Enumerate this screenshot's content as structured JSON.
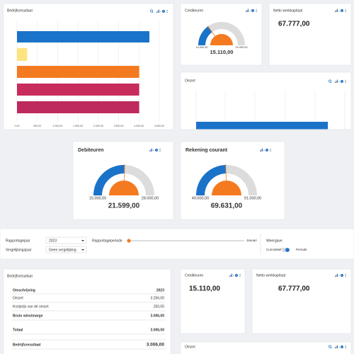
{
  "bar_chart": {
    "title": "Bedrijfsresultaat",
    "type": "bar",
    "orientation": "horizontal",
    "values": [
      3256,
      250,
      3006,
      3006,
      3006
    ],
    "colors": [
      "#1a73c9",
      "#fde47f",
      "#f47a20",
      "#c72c5c",
      "#be2a5e"
    ],
    "xlim": [
      0,
      3500
    ],
    "xticks": [
      {
        "value": 0,
        "label": "0,00"
      },
      {
        "value": 500,
        "label": "500,00"
      },
      {
        "value": 1000,
        "label": "1.000,00"
      },
      {
        "value": 1500,
        "label": "1.500,00"
      },
      {
        "value": 2000,
        "label": "2.000,00"
      },
      {
        "value": 2500,
        "label": "2.500,00"
      },
      {
        "value": 3000,
        "label": "3.000,00"
      },
      {
        "value": 3500,
        "label": "3.500,00"
      }
    ],
    "grid": true
  },
  "crediteuren_gauge": {
    "title": "Crediteuren",
    "type": "gauge",
    "min": {
      "value": 13000,
      "label": "13.000,00"
    },
    "max": {
      "value": 20000,
      "label": "20.000,00"
    },
    "value": 15110,
    "value_label": "15.110,00"
  },
  "netto_top": {
    "title": "Netto werkkapitaal",
    "value": "67.777,00"
  },
  "omzet_chart": {
    "title": "Omzet",
    "type": "bar",
    "values": [
      3256
    ],
    "color": "#1a73c9",
    "xlim": [
      0,
      3500
    ]
  },
  "debiteuren_gauge": {
    "title": "Debiteuren",
    "type": "gauge",
    "min": {
      "value": 15000,
      "label": "15.000,00"
    },
    "max": {
      "value": 28000,
      "label": "28.000,00"
    },
    "value": 21599,
    "value_label": "21.599,00"
  },
  "rekening_gauge": {
    "title": "Rekening courant",
    "type": "gauge",
    "min": {
      "value": 49000,
      "label": "49.000,00"
    },
    "max": {
      "value": 91000,
      "label": "91.000,00"
    },
    "value": 69631,
    "value_label": "69.631,00"
  },
  "filters": {
    "reporting_year_label": "Rapportagejaar",
    "reporting_year": "2023",
    "comparison_year_label": "Vergelijkingsjaar",
    "comparison_year": "Geen vergelijking",
    "period_label": "Rapportageperiode",
    "period_value": "Januari",
    "view_label": "Weergave",
    "view_options": [
      "Cumulatief",
      "Periode"
    ]
  },
  "table": {
    "title": "Bedrijfsresultaat",
    "header": [
      "Omschrijving",
      "2023"
    ],
    "rows": [
      [
        "Omzet",
        "3.256,00"
      ],
      [
        "Kostprijs van de omzet",
        "250,00"
      ],
      [
        "Bruto winstmarge",
        "3.006,00"
      ],
      [
        "Totaal",
        "3.006,00"
      ],
      [
        "Bedrijfsresultaat",
        "3.006,00"
      ]
    ]
  },
  "crediteuren_kpi": {
    "title": "Crediteuren",
    "value": "15.110,00"
  },
  "netto_kpi": {
    "title": "Netto werkkapitaal",
    "value": "67.777,00"
  },
  "omzet_bottom": {
    "title": "Omzet"
  }
}
